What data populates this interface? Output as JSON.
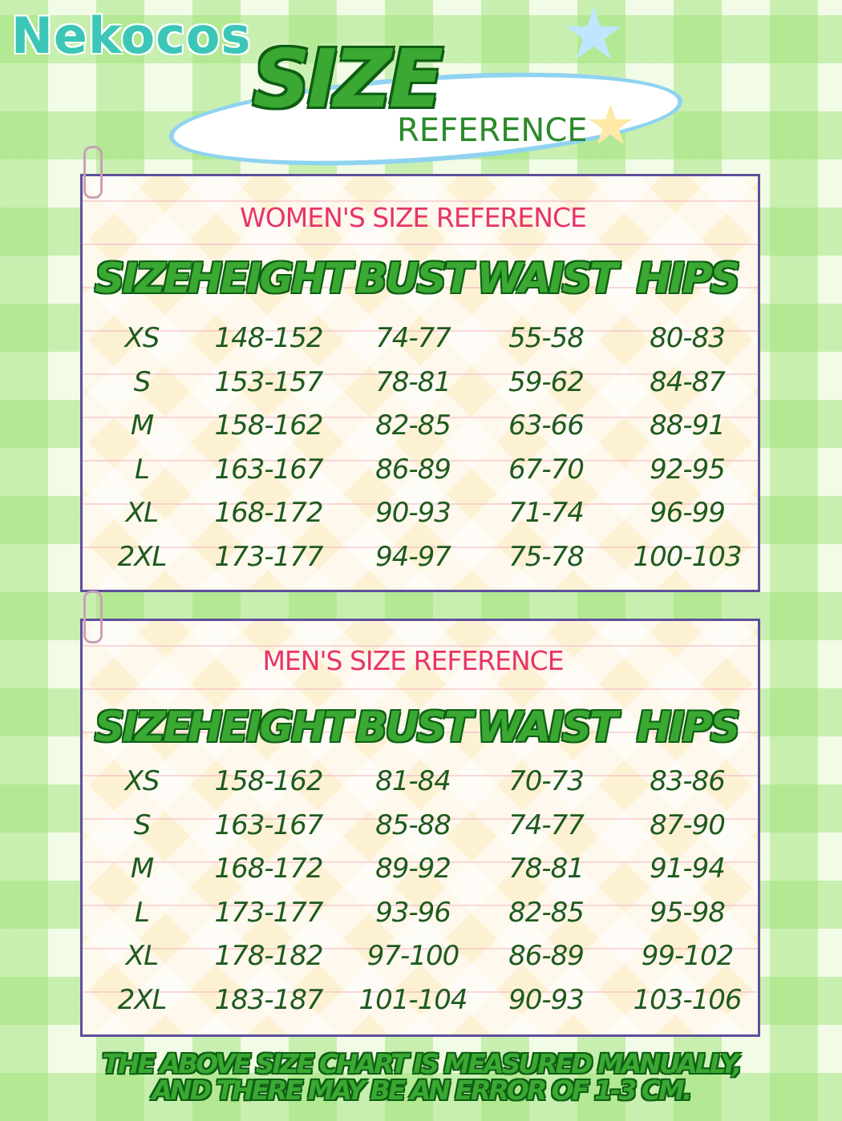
{
  "brand": "Nekocos",
  "title": "SIZE",
  "subtitle": "REFERENCE",
  "tables": [
    {
      "title": "WOMEN'S SIZE REFERENCE",
      "headers": [
        "SIZE",
        "HEIGHT",
        "BUST",
        "WAIST",
        "HIPS"
      ],
      "rows": [
        [
          "XS",
          "148-152",
          "74-77",
          "55-58",
          "80-83"
        ],
        [
          "S",
          "153-157",
          "78-81",
          "59-62",
          "84-87"
        ],
        [
          "M",
          "158-162",
          "82-85",
          "63-66",
          "88-91"
        ],
        [
          "L",
          "163-167",
          "86-89",
          "67-70",
          "92-95"
        ],
        [
          "XL",
          "168-172",
          "90-93",
          "71-74",
          "96-99"
        ],
        [
          "2XL",
          "173-177",
          "94-97",
          "75-78",
          "100-103"
        ]
      ]
    },
    {
      "title": "MEN'S SIZE REFERENCE",
      "headers": [
        "SIZE",
        "HEIGHT",
        "BUST",
        "WAIST",
        "HIPS"
      ],
      "rows": [
        [
          "XS",
          "158-162",
          "81-84",
          "70-73",
          "83-86"
        ],
        [
          "S",
          "163-167",
          "85-88",
          "74-77",
          "87-90"
        ],
        [
          "M",
          "168-172",
          "89-92",
          "78-81",
          "91-94"
        ],
        [
          "L",
          "173-177",
          "93-96",
          "82-85",
          "95-98"
        ],
        [
          "XL",
          "178-182",
          "97-100",
          "86-89",
          "99-102"
        ],
        [
          "2XL",
          "183-187",
          "101-104",
          "90-93",
          "103-106"
        ]
      ]
    }
  ],
  "note": [
    "THE ABOVE SIZE CHART IS MEASURED MANUALLY,",
    "AND THERE MAY BE AN ERROR OF 1-3 CM."
  ]
}
